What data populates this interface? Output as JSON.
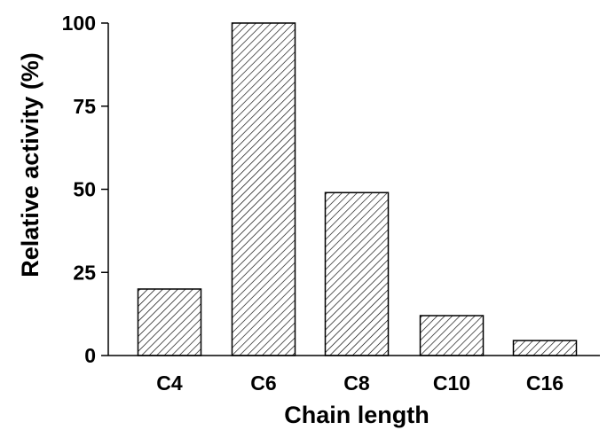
{
  "chart_data": {
    "type": "bar",
    "title": "",
    "xlabel": "Chain length",
    "ylabel": "Relative activity (%)",
    "categories": [
      "C4",
      "C6",
      "C8",
      "C10",
      "C16"
    ],
    "values": [
      20,
      100,
      49,
      12,
      4.5
    ],
    "ylim": [
      0,
      100
    ],
    "yticks": [
      0,
      25,
      50,
      75,
      100
    ],
    "grid": false,
    "legend": "none",
    "bar_fill": "hatched",
    "colors": {
      "bar_stroke": "#000000",
      "bar_hatch": "#000000",
      "axis": "#000000",
      "background": "#ffffff"
    }
  }
}
